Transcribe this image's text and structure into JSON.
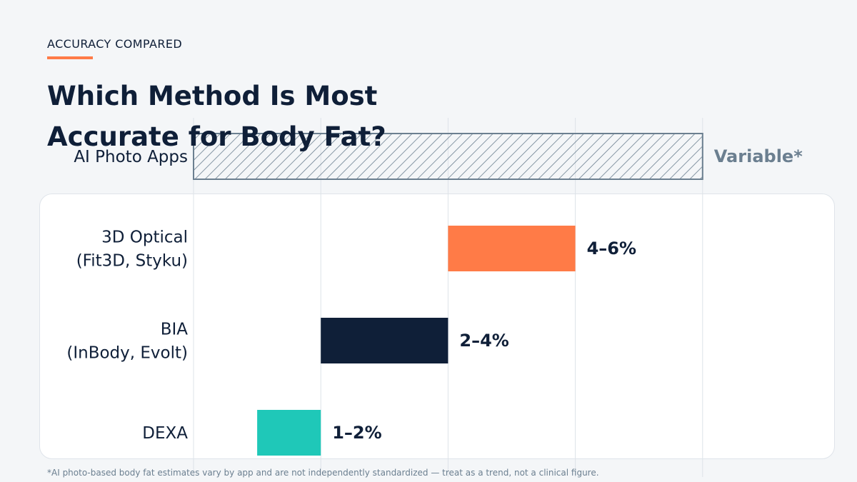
{
  "header": {
    "eyebrow": "ACCURACY COMPARED",
    "title": "Which Method Is Most Accurate for Body Fat?"
  },
  "footnote": "*AI photo-based body fat estimates vary by app and are not independently standardized — treat as a trend, not a clinical figure.",
  "colors": {
    "accent": "#ff7b47",
    "navy": "#0f1f38",
    "teal": "#1fc8b8",
    "hatch": "#6b7f90"
  },
  "chart_data": {
    "type": "bar",
    "orientation": "horizontal",
    "categories": [
      [
        "AI Photo Apps"
      ],
      [
        "3D Optical",
        "(Fit3D, Styku)"
      ],
      [
        "BIA",
        "(InBody, Evolt)"
      ],
      [
        "DEXA"
      ]
    ],
    "ranges": [
      [
        0,
        8
      ],
      [
        4,
        6
      ],
      [
        2,
        4
      ],
      [
        1,
        2
      ]
    ],
    "value_labels": [
      "Variable*",
      "4–6%",
      "2–4%",
      "1–2%"
    ],
    "bar_styles": [
      "hatched",
      "solid",
      "solid",
      "solid"
    ],
    "bar_colors": [
      "#6b7f90",
      "#ff7b47",
      "#0f1f38",
      "#1fc8b8"
    ],
    "xlim": [
      0,
      10
    ],
    "grid": true
  }
}
